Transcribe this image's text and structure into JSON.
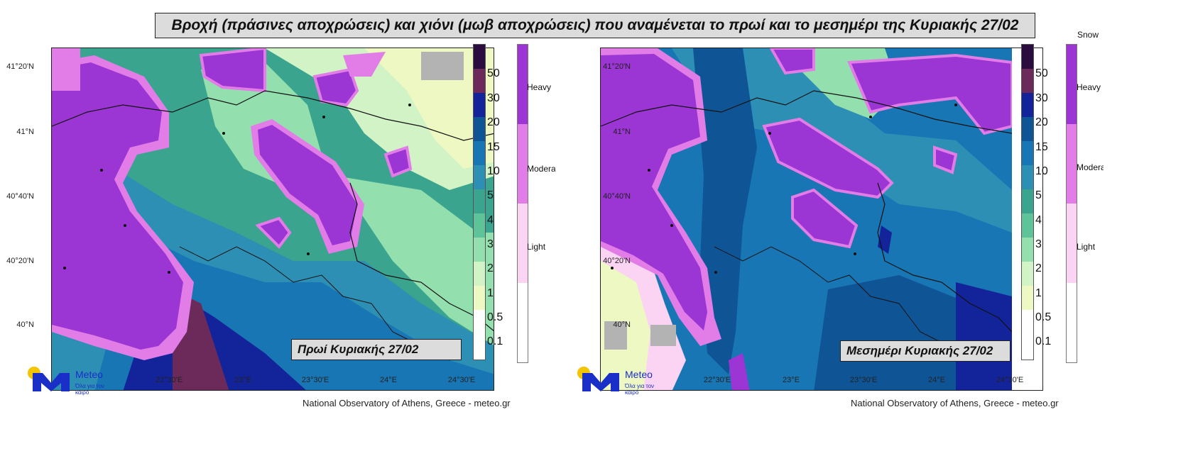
{
  "title": "Βροχή (πράσινες αποχρώσεις) και χιόνι (μωβ αποχρώσεις) που αναμένεται το πρωί και το μεσημέρι της Κυριακής 27/02",
  "latitude_labels": [
    "41°20'N",
    "41°N",
    "40°40'N",
    "40°20'N",
    "40°N"
  ],
  "longitude_labels": [
    "22°30'E",
    "23°E",
    "23°30'E",
    "24°E",
    "24°30'E"
  ],
  "rain_scale": {
    "labels": [
      "50",
      "30",
      "20",
      "15",
      "10",
      "5",
      "4",
      "3",
      "2",
      "1",
      "0.5",
      "0.1"
    ],
    "colors": [
      "#2a0c3e",
      "#6b2a5a",
      "#13249a",
      "#0f5596",
      "#1876b4",
      "#2e8fb5",
      "#3aa48f",
      "#5fc39a",
      "#93dfae",
      "#d1f3c6",
      "#eef8c2",
      "#ffffff"
    ]
  },
  "snow_scale": {
    "title": "Snow",
    "levels": [
      "Heavy",
      "Moderate",
      "Light"
    ],
    "colors": [
      "#9b35d3",
      "#e27de8",
      "#fbd3f3",
      "#ffffff"
    ]
  },
  "panels": [
    {
      "caption": "Πρωί Κυριακής 27/02",
      "credit": "National Observatory of Athens, Greece - meteo.gr",
      "logo": {
        "brand": "Meteo",
        "tagline": "Όλα για τον καιρό"
      }
    },
    {
      "caption": "Μεσημέρι Κυριακής 27/02",
      "credit": "National Observatory of Athens, Greece - meteo.gr",
      "logo": {
        "brand": "Meteo",
        "tagline": "Όλα για τον καιρό"
      }
    }
  ]
}
